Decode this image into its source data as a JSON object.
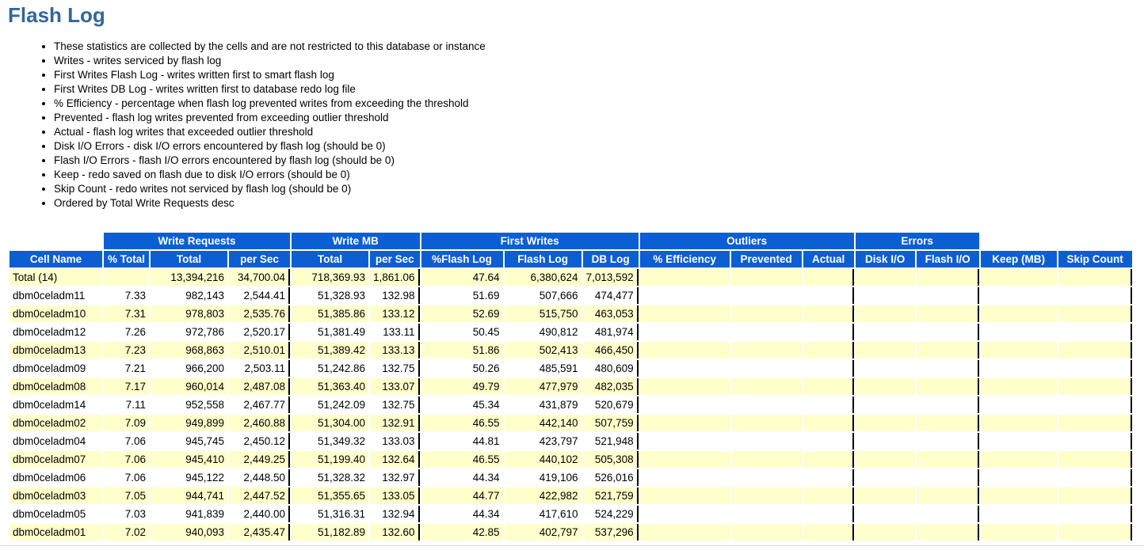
{
  "page": {
    "title": "Flash Log"
  },
  "notes": [
    "These statistics are collected by the cells and are not restricted to this database or instance",
    "Writes - writes serviced by flash log",
    "First Writes Flash Log - writes written first to smart flash log",
    "First Writes DB Log - writes written first to database redo log file",
    "% Efficiency - percentage when flash log prevented writes from exceeding the threshold",
    "Prevented - flash log writes prevented from exceeding outlier threshold",
    "Actual - flash log writes that exceeded outlier threshold",
    "Disk I/O Errors - disk I/O errors encountered by flash log (should be 0)",
    "Flash I/O Errors - flash I/O errors encountered by flash log (should be 0)",
    "Keep - redo saved on flash due to disk I/O errors (should be 0)",
    "Skip Count - redo writes not serviced by flash log (should be 0)",
    "Ordered by Total Write Requests desc"
  ],
  "table": {
    "group_headers": [
      {
        "label": "",
        "span": 1
      },
      {
        "label": "Write Requests",
        "span": 3
      },
      {
        "label": "Write MB",
        "span": 2
      },
      {
        "label": "First Writes",
        "span": 3
      },
      {
        "label": "Outliers",
        "span": 3
      },
      {
        "label": "Errors",
        "span": 2
      },
      {
        "label": "",
        "span": 2
      }
    ],
    "columns": [
      "Cell Name",
      "% Total",
      "Total",
      "per Sec",
      "Total",
      "per Sec",
      "%Flash Log",
      "Flash Log",
      "DB Log",
      "% Efficiency",
      "Prevented",
      "Actual",
      "Disk I/O",
      "Flash I/O",
      "Keep (MB)",
      "Skip Count"
    ],
    "rows": [
      [
        "Total (14)",
        "",
        "13,394,216",
        "34,700.04",
        "718,369.93",
        "1,861.06",
        "47.64",
        "6,380,624",
        "7,013,592",
        "",
        "",
        "",
        "",
        "",
        "",
        ""
      ],
      [
        "dbm0celadm11",
        "7.33",
        "982,143",
        "2,544.41",
        "51,328.93",
        "132.98",
        "51.69",
        "507,666",
        "474,477",
        "",
        "",
        "",
        "",
        "",
        "",
        ""
      ],
      [
        "dbm0celadm10",
        "7.31",
        "978,803",
        "2,535.76",
        "51,385.86",
        "133.12",
        "52.69",
        "515,750",
        "463,053",
        "",
        "",
        "",
        "",
        "",
        "",
        ""
      ],
      [
        "dbm0celadm12",
        "7.26",
        "972,786",
        "2,520.17",
        "51,381.49",
        "133.11",
        "50.45",
        "490,812",
        "481,974",
        "",
        "",
        "",
        "",
        "",
        "",
        ""
      ],
      [
        "dbm0celadm13",
        "7.23",
        "968,863",
        "2,510.01",
        "51,389.42",
        "133.13",
        "51.86",
        "502,413",
        "466,450",
        "",
        "",
        "",
        "",
        "",
        "",
        ""
      ],
      [
        "dbm0celadm09",
        "7.21",
        "966,200",
        "2,503.11",
        "51,242.86",
        "132.75",
        "50.26",
        "485,591",
        "480,609",
        "",
        "",
        "",
        "",
        "",
        "",
        ""
      ],
      [
        "dbm0celadm08",
        "7.17",
        "960,014",
        "2,487.08",
        "51,363.40",
        "133.07",
        "49.79",
        "477,979",
        "482,035",
        "",
        "",
        "",
        "",
        "",
        "",
        ""
      ],
      [
        "dbm0celadm14",
        "7.11",
        "952,558",
        "2,467.77",
        "51,242.09",
        "132.75",
        "45.34",
        "431,879",
        "520,679",
        "",
        "",
        "",
        "",
        "",
        "",
        ""
      ],
      [
        "dbm0celadm02",
        "7.09",
        "949,899",
        "2,460.88",
        "51,304.00",
        "132.91",
        "46.55",
        "442,140",
        "507,759",
        "",
        "",
        "",
        "",
        "",
        "",
        ""
      ],
      [
        "dbm0celadm04",
        "7.06",
        "945,745",
        "2,450.12",
        "51,349.32",
        "133.03",
        "44.81",
        "423,797",
        "521,948",
        "",
        "",
        "",
        "",
        "",
        "",
        ""
      ],
      [
        "dbm0celadm07",
        "7.06",
        "945,410",
        "2,449.25",
        "51,199.40",
        "132.64",
        "46.55",
        "440,102",
        "505,308",
        "",
        "",
        "",
        "",
        "",
        "",
        ""
      ],
      [
        "dbm0celadm06",
        "7.06",
        "945,122",
        "2,448.50",
        "51,328.32",
        "132.97",
        "44.34",
        "419,106",
        "526,016",
        "",
        "",
        "",
        "",
        "",
        "",
        ""
      ],
      [
        "dbm0celadm03",
        "7.05",
        "944,741",
        "2,447.52",
        "51,355.65",
        "133.05",
        "44.77",
        "422,982",
        "521,759",
        "",
        "",
        "",
        "",
        "",
        "",
        ""
      ],
      [
        "dbm0celadm05",
        "7.03",
        "941,839",
        "2,440.00",
        "51,316.31",
        "132.94",
        "44.34",
        "417,610",
        "524,229",
        "",
        "",
        "",
        "",
        "",
        "",
        ""
      ],
      [
        "dbm0celadm01",
        "7.02",
        "940,093",
        "2,435.47",
        "51,182.89",
        "132.60",
        "42.85",
        "402,797",
        "537,296",
        "",
        "",
        "",
        "",
        "",
        "",
        ""
      ]
    ]
  },
  "colors": {
    "header_bg": "#0C5FD2",
    "header_text": "#FFFFFF",
    "stripe_bg": "#FFFFCC",
    "title": "#336699",
    "group_border": "#000000"
  }
}
